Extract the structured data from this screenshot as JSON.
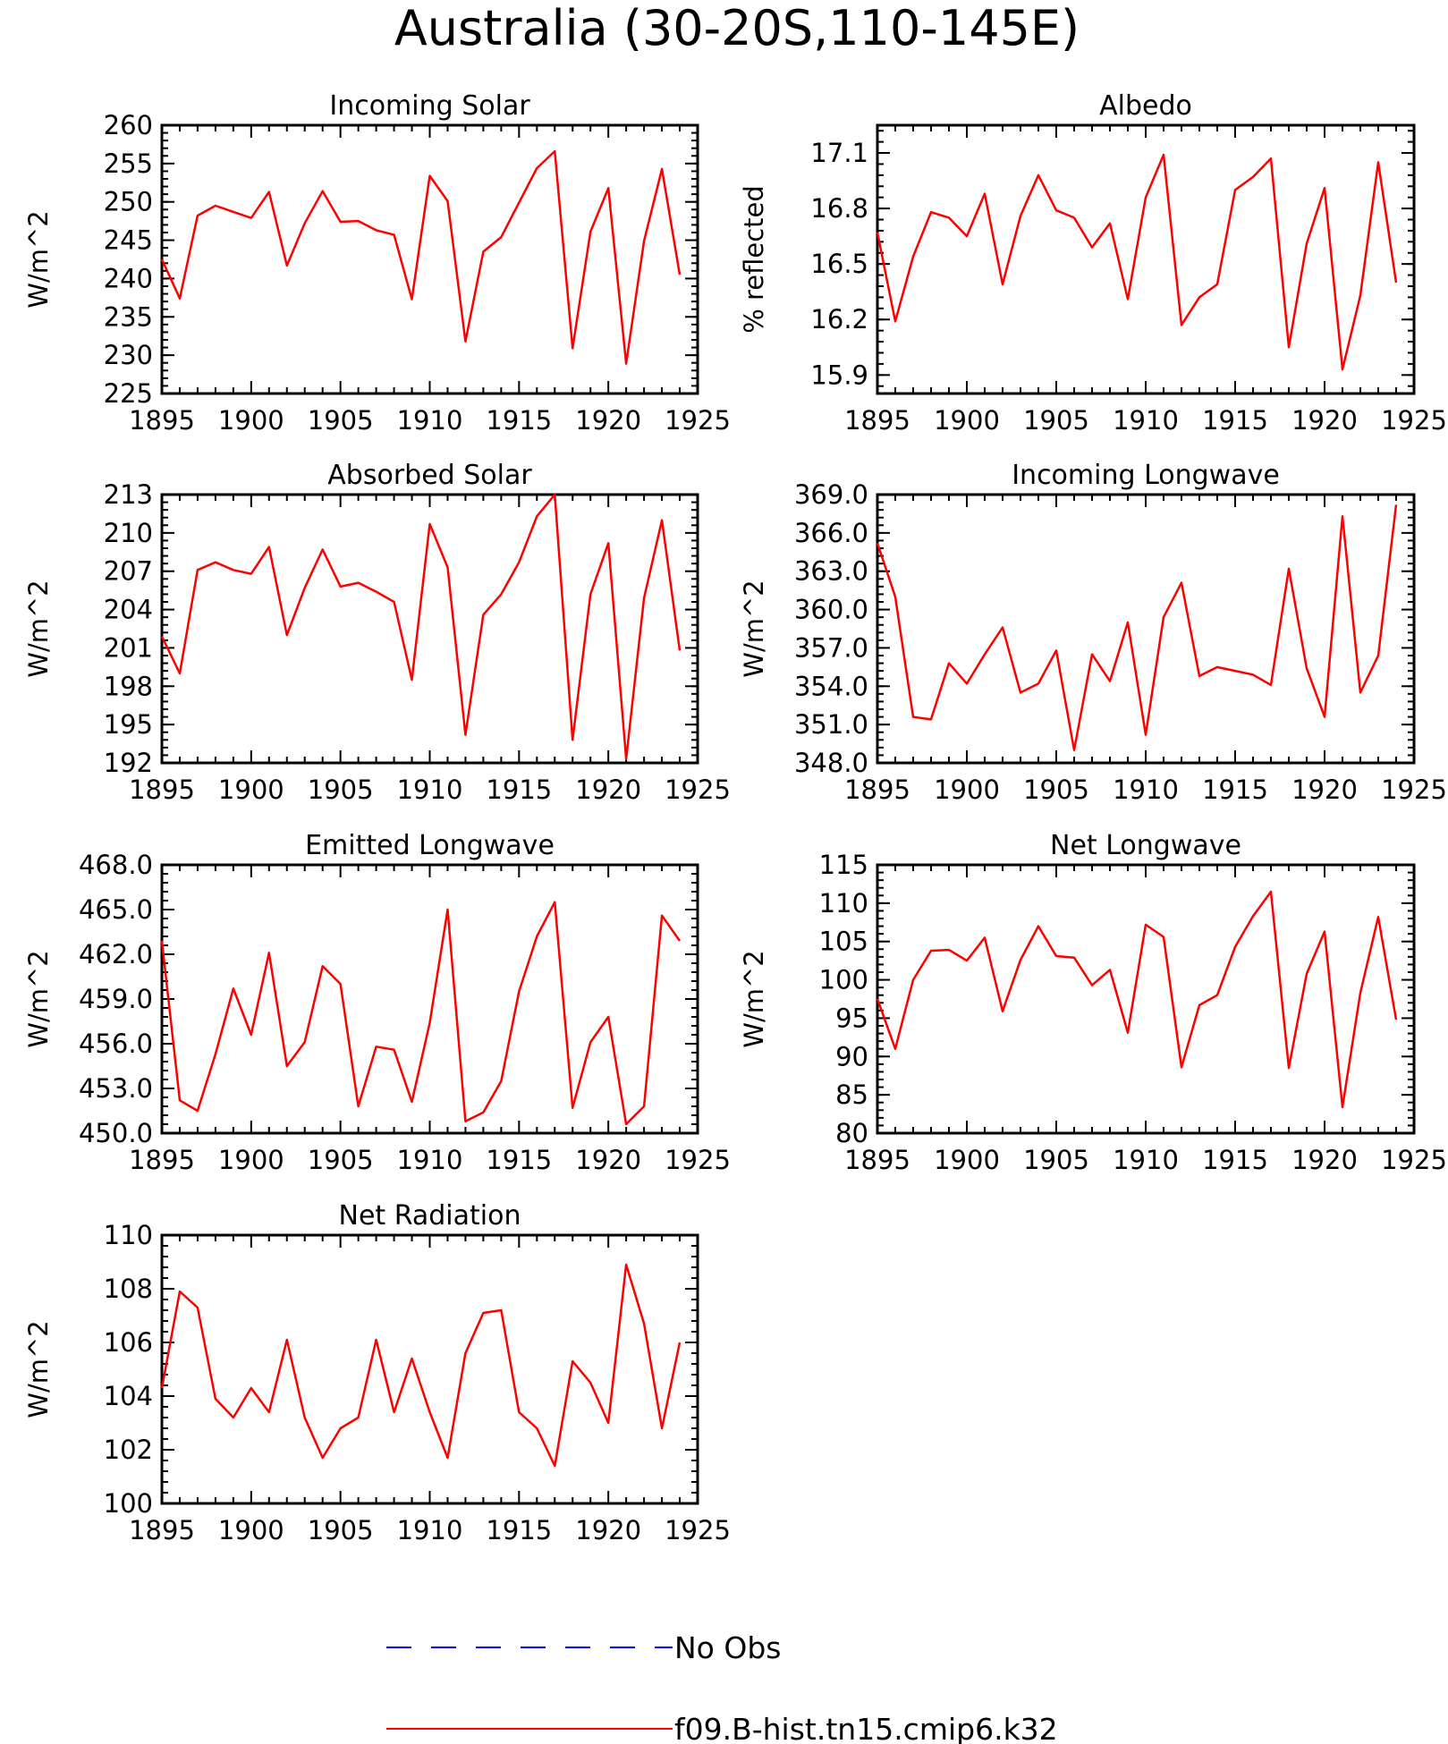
{
  "title": "Australia (30-20S,110-145E)",
  "chart_data": [
    {
      "type": "line",
      "title": "Incoming Solar",
      "xlabel": "",
      "ylabel": "W/m^2",
      "xlim": [
        1895,
        1925
      ],
      "ylim": [
        225,
        260
      ],
      "xticks": [
        "1895",
        "1900",
        "1905",
        "1910",
        "1915",
        "1920",
        "1925"
      ],
      "yticks": [
        "225",
        "230",
        "235",
        "240",
        "245",
        "250",
        "255",
        "260"
      ],
      "x": [
        1895,
        1896,
        1897,
        1898,
        1899,
        1900,
        1901,
        1902,
        1903,
        1904,
        1905,
        1906,
        1907,
        1908,
        1909,
        1910,
        1911,
        1912,
        1913,
        1914,
        1915,
        1916,
        1917,
        1918,
        1919,
        1920,
        1921,
        1922,
        1923,
        1924
      ],
      "series": [
        {
          "name": "f09.B-hist.tn15.cmip6.k32",
          "color": "#ff0000",
          "values": [
            242.5,
            237.4,
            248.2,
            249.5,
            248.7,
            247.9,
            251.3,
            241.7,
            247.2,
            251.4,
            247.4,
            247.5,
            246.3,
            245.7,
            237.3,
            253.4,
            250.1,
            231.8,
            243.5,
            245.4,
            249.9,
            254.4,
            256.6,
            230.9,
            246.1,
            251.8,
            228.9,
            244.9,
            254.3,
            240.5
          ]
        }
      ]
    },
    {
      "type": "line",
      "title": "Albedo",
      "xlabel": "",
      "ylabel": "% reflected",
      "xlim": [
        1895,
        1925
      ],
      "ylim": [
        15.8,
        17.25
      ],
      "xticks": [
        "1895",
        "1900",
        "1905",
        "1910",
        "1915",
        "1920",
        "1925"
      ],
      "yticks": [
        "15.9",
        "16.2",
        "16.5",
        "16.8",
        "17.1"
      ],
      "x": [
        1895,
        1896,
        1897,
        1898,
        1899,
        1900,
        1901,
        1902,
        1903,
        1904,
        1905,
        1906,
        1907,
        1908,
        1909,
        1910,
        1911,
        1912,
        1913,
        1914,
        1915,
        1916,
        1917,
        1918,
        1919,
        1920,
        1921,
        1922,
        1923,
        1924
      ],
      "series": [
        {
          "name": "f09.B-hist.tn15.cmip6.k32",
          "color": "#ff0000",
          "values": [
            16.67,
            16.19,
            16.54,
            16.78,
            16.75,
            16.65,
            16.88,
            16.39,
            16.76,
            16.98,
            16.79,
            16.75,
            16.59,
            16.72,
            16.31,
            16.86,
            17.09,
            16.17,
            16.32,
            16.39,
            16.9,
            16.97,
            17.07,
            16.05,
            16.61,
            16.91,
            15.93,
            16.33,
            17.05,
            16.4
          ]
        }
      ]
    },
    {
      "type": "line",
      "title": "Absorbed Solar",
      "xlabel": "",
      "ylabel": "W/m^2",
      "xlim": [
        1895,
        1925
      ],
      "ylim": [
        192,
        213
      ],
      "xticks": [
        "1895",
        "1900",
        "1905",
        "1910",
        "1915",
        "1920",
        "1925"
      ],
      "yticks": [
        "192",
        "195",
        "198",
        "201",
        "204",
        "207",
        "210",
        "213"
      ],
      "x": [
        1895,
        1896,
        1897,
        1898,
        1899,
        1900,
        1901,
        1902,
        1903,
        1904,
        1905,
        1906,
        1907,
        1908,
        1909,
        1910,
        1911,
        1912,
        1913,
        1914,
        1915,
        1916,
        1917,
        1918,
        1919,
        1920,
        1921,
        1922,
        1923,
        1924
      ],
      "series": [
        {
          "name": "f09.B-hist.tn15.cmip6.k32",
          "color": "#ff0000",
          "values": [
            201.9,
            199.0,
            207.1,
            207.7,
            207.1,
            206.8,
            208.9,
            202.0,
            205.7,
            208.7,
            205.8,
            206.1,
            205.4,
            204.6,
            198.5,
            210.7,
            207.3,
            194.2,
            203.6,
            205.2,
            207.7,
            211.3,
            213.0,
            193.8,
            205.2,
            209.2,
            192.3,
            204.9,
            211.0,
            200.8
          ]
        }
      ]
    },
    {
      "type": "line",
      "title": "Incoming Longwave",
      "xlabel": "",
      "ylabel": "W/m^2",
      "xlim": [
        1895,
        1925
      ],
      "ylim": [
        348.0,
        369.0
      ],
      "xticks": [
        "1895",
        "1900",
        "1905",
        "1910",
        "1915",
        "1920",
        "1925"
      ],
      "yticks": [
        "348.0",
        "351.0",
        "354.0",
        "357.0",
        "360.0",
        "363.0",
        "366.0",
        "369.0"
      ],
      "x": [
        1895,
        1896,
        1897,
        1898,
        1899,
        1900,
        1901,
        1902,
        1903,
        1904,
        1905,
        1906,
        1907,
        1908,
        1909,
        1910,
        1911,
        1912,
        1913,
        1914,
        1915,
        1916,
        1917,
        1918,
        1919,
        1920,
        1921,
        1922,
        1923,
        1924
      ],
      "series": [
        {
          "name": "f09.B-hist.tn15.cmip6.k32",
          "color": "#ff0000",
          "values": [
            365.2,
            361.0,
            351.6,
            351.4,
            355.8,
            354.2,
            356.5,
            358.6,
            353.5,
            354.2,
            356.8,
            349.0,
            356.5,
            354.4,
            359.0,
            350.2,
            359.4,
            362.1,
            354.8,
            355.5,
            355.2,
            354.9,
            354.1,
            363.2,
            355.4,
            351.6,
            367.3,
            353.5,
            356.4,
            368.2
          ]
        }
      ]
    },
    {
      "type": "line",
      "title": "Emitted Longwave",
      "xlabel": "",
      "ylabel": "W/m^2",
      "xlim": [
        1895,
        1925
      ],
      "ylim": [
        450.0,
        468.0
      ],
      "xticks": [
        "1895",
        "1900",
        "1905",
        "1910",
        "1915",
        "1920",
        "1925"
      ],
      "yticks": [
        "450.0",
        "453.0",
        "456.0",
        "459.0",
        "462.0",
        "465.0",
        "468.0"
      ],
      "x": [
        1895,
        1896,
        1897,
        1898,
        1899,
        1900,
        1901,
        1902,
        1903,
        1904,
        1905,
        1906,
        1907,
        1908,
        1909,
        1910,
        1911,
        1912,
        1913,
        1914,
        1915,
        1916,
        1917,
        1918,
        1919,
        1920,
        1921,
        1922,
        1923,
        1924
      ],
      "series": [
        {
          "name": "f09.B-hist.tn15.cmip6.k32",
          "color": "#ff0000",
          "values": [
            462.9,
            452.2,
            451.5,
            455.3,
            459.7,
            456.6,
            462.1,
            454.5,
            456.1,
            461.2,
            460.0,
            451.8,
            455.8,
            455.6,
            452.1,
            457.4,
            465.0,
            450.8,
            451.4,
            453.5,
            459.5,
            463.2,
            465.5,
            451.7,
            456.1,
            457.8,
            450.6,
            451.8,
            464.6,
            462.9
          ]
        }
      ]
    },
    {
      "type": "line",
      "title": "Net Longwave",
      "xlabel": "",
      "ylabel": "W/m^2",
      "xlim": [
        1895,
        1925
      ],
      "ylim": [
        80,
        115
      ],
      "xticks": [
        "1895",
        "1900",
        "1905",
        "1910",
        "1915",
        "1920",
        "1925"
      ],
      "yticks": [
        "80",
        "85",
        "90",
        "95",
        "100",
        "105",
        "110",
        "115"
      ],
      "x": [
        1895,
        1896,
        1897,
        1898,
        1899,
        1900,
        1901,
        1902,
        1903,
        1904,
        1905,
        1906,
        1907,
        1908,
        1909,
        1910,
        1911,
        1912,
        1913,
        1914,
        1915,
        1916,
        1917,
        1918,
        1919,
        1920,
        1921,
        1922,
        1923,
        1924
      ],
      "series": [
        {
          "name": "f09.B-hist.tn15.cmip6.k32",
          "color": "#ff0000",
          "values": [
            97.5,
            91.0,
            100.0,
            103.8,
            103.9,
            102.5,
            105.5,
            95.9,
            102.6,
            107.0,
            103.1,
            102.9,
            99.3,
            101.3,
            93.1,
            107.2,
            105.6,
            88.6,
            96.7,
            98.0,
            104.3,
            108.3,
            111.5,
            88.5,
            100.8,
            106.3,
            83.4,
            98.3,
            108.2,
            94.8
          ]
        }
      ]
    },
    {
      "type": "line",
      "title": "Net Radiation",
      "xlabel": "",
      "ylabel": "W/m^2",
      "xlim": [
        1895,
        1925
      ],
      "ylim": [
        100,
        110
      ],
      "xticks": [
        "1895",
        "1900",
        "1905",
        "1910",
        "1915",
        "1920",
        "1925"
      ],
      "yticks": [
        "100",
        "102",
        "104",
        "106",
        "108",
        "110"
      ],
      "x": [
        1895,
        1896,
        1897,
        1898,
        1899,
        1900,
        1901,
        1902,
        1903,
        1904,
        1905,
        1906,
        1907,
        1908,
        1909,
        1910,
        1911,
        1912,
        1913,
        1914,
        1915,
        1916,
        1917,
        1918,
        1919,
        1920,
        1921,
        1922,
        1923,
        1924
      ],
      "series": [
        {
          "name": "f09.B-hist.tn15.cmip6.k32",
          "color": "#ff0000",
          "values": [
            104.3,
            107.9,
            107.3,
            103.9,
            103.2,
            104.3,
            103.4,
            106.1,
            103.2,
            101.7,
            102.8,
            103.2,
            106.1,
            103.4,
            105.4,
            103.4,
            101.7,
            105.6,
            107.1,
            107.2,
            103.4,
            102.8,
            101.4,
            105.3,
            104.5,
            103.0,
            108.9,
            106.7,
            102.8,
            106.0
          ]
        }
      ]
    }
  ],
  "legend": {
    "position": "bottom-center",
    "items": [
      {
        "label": "No Obs",
        "color": "#0000ff",
        "style": "dashed"
      },
      {
        "label": "f09.B-hist.tn15.cmip6.k32",
        "color": "#ff0000",
        "style": "solid"
      }
    ]
  }
}
